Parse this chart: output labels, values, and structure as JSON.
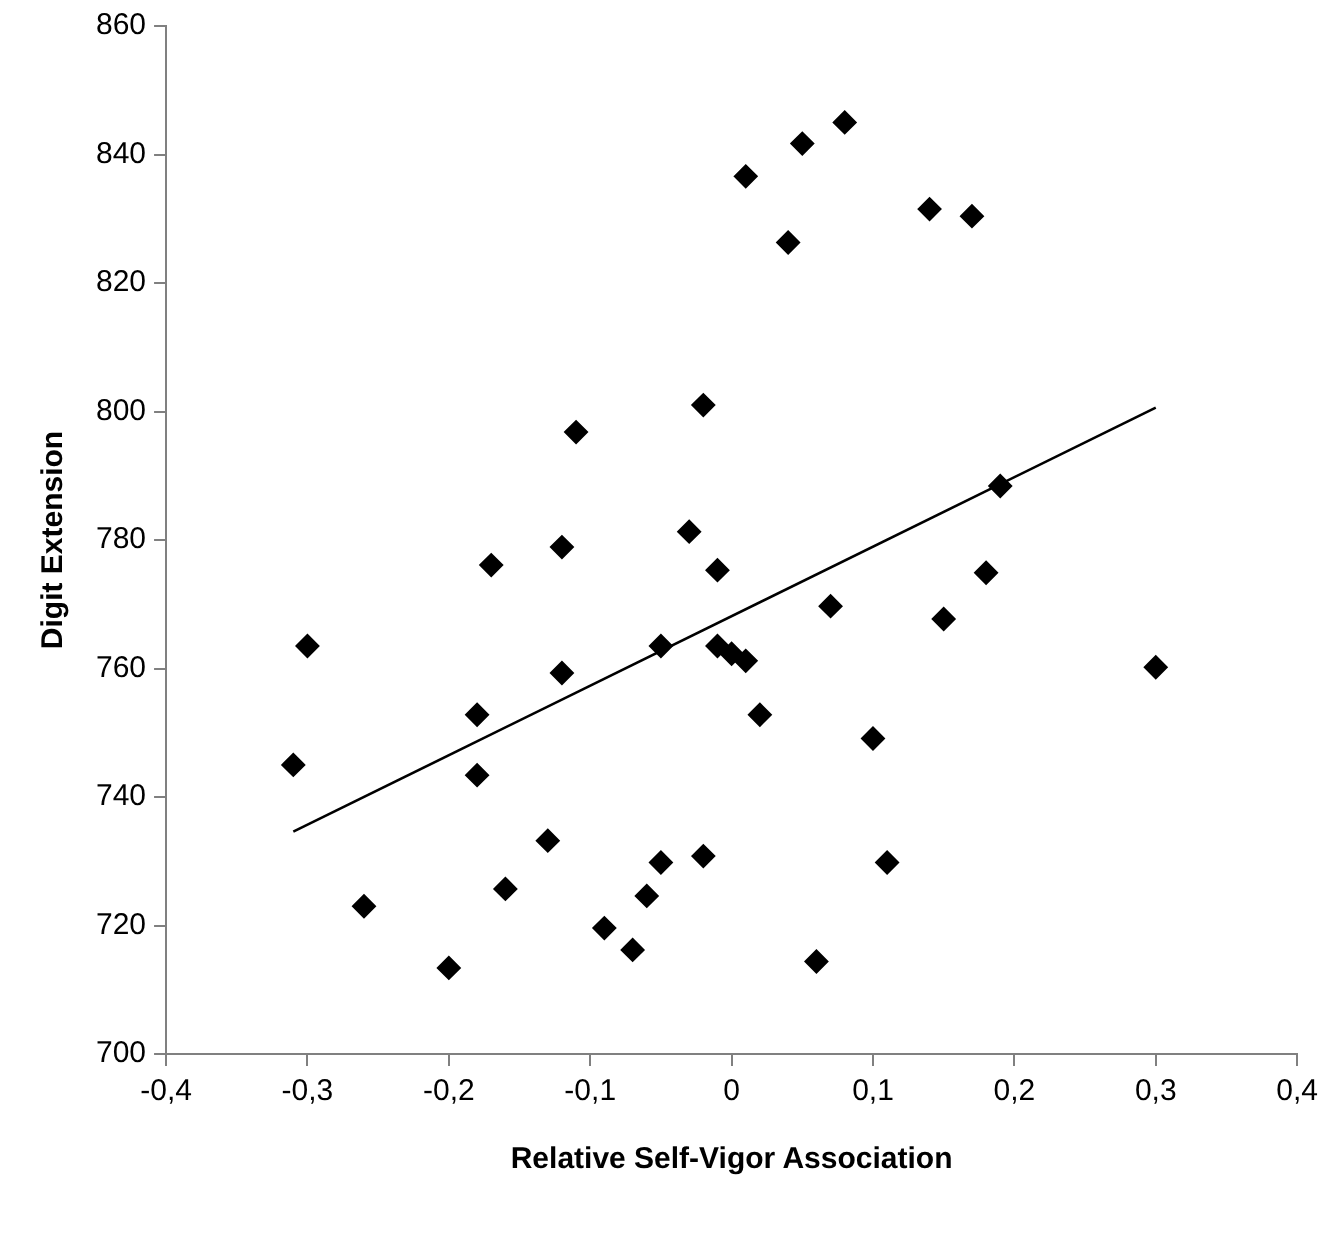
{
  "chart_data": {
    "type": "scatter",
    "xlabel": "Relative Self-Vigor Association",
    "ylabel": "Digit Extension",
    "xlim": [
      -0.4,
      0.4
    ],
    "xticks": [
      {
        "value": -0.4,
        "label": "-0,4"
      },
      {
        "value": -0.3,
        "label": "-0,3"
      },
      {
        "value": -0.2,
        "label": "-0,2"
      },
      {
        "value": -0.1,
        "label": "-0,1"
      },
      0,
      {
        "value": 0.1,
        "label": "0,1"
      },
      {
        "value": 0.2,
        "label": "0,2"
      },
      {
        "value": 0.3,
        "label": "0,3"
      },
      {
        "value": 0.4,
        "label": "0,4"
      }
    ],
    "ylim": [
      700,
      860
    ],
    "yticks": [
      700,
      720,
      740,
      760,
      780,
      800,
      820,
      840,
      860
    ],
    "legend": false,
    "series": [
      {
        "marker": "diamond",
        "color": "#000000",
        "x": [
          -0.31,
          -0.3,
          -0.26,
          -0.2,
          -0.18,
          -0.18,
          -0.16,
          -0.13,
          -0.12,
          -0.09,
          -0.07,
          -0.06,
          -0.05,
          -0.05,
          -0.02,
          -0.01,
          0.0,
          0.01,
          0.02,
          0.07,
          0.15,
          0.3,
          0.1,
          0.11,
          0.06,
          -0.17,
          -0.12,
          -0.11,
          -0.02,
          -0.03,
          -0.01,
          0.01,
          0.05,
          0.08,
          0.04,
          0.14,
          0.17,
          0.19,
          0.18
        ],
        "values": [
          745,
          763.5,
          723,
          713.4,
          752.8,
          743.4,
          725.7,
          733.2,
          759.3,
          719.6,
          716.2,
          724.6,
          729.8,
          763.5,
          730.8,
          763.5,
          762.3,
          761.2,
          752.8,
          769.7,
          767.7,
          760.2,
          749.1,
          729.8,
          714.4,
          776.1,
          778.9,
          796.8,
          801,
          781.3,
          775.3,
          836.6,
          841.7,
          845,
          826.3,
          831.5,
          830.4,
          788.4,
          774.9
        ]
      },
      {
        "type": "line",
        "marker": "none",
        "color": "#000000",
        "x": [
          -0.31,
          0.3
        ],
        "values": [
          734.6,
          800.6
        ]
      }
    ]
  }
}
